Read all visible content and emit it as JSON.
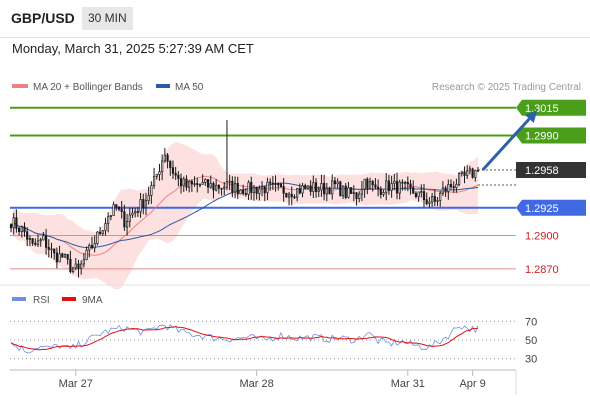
{
  "header": {
    "symbol": "GBP/USD",
    "timeframe": "30 MIN"
  },
  "datetime": "Monday, March 31, 2025 5:27:39 AM CET",
  "copyright": "Research © 2025 Trading Central",
  "colors": {
    "resistance": "#4a9e1a",
    "support": "#4169e1",
    "target_line": "#e28a8a",
    "band_fill": "#fde1e1",
    "ma20": "#f08080",
    "ma50": "#2c5b9e",
    "price_box": "#333333",
    "arrow": "#2d62a8",
    "rsi": "#6f8fe0",
    "rsi_ma": "#dd1111",
    "candle": "#1a1a1a"
  },
  "chart_data": [
    {
      "type": "candlestick",
      "legend": [
        {
          "name": "MA 20 + Bollinger Bands",
          "color": "#f08080"
        },
        {
          "name": "MA 50",
          "color": "#2c5b9e"
        }
      ],
      "ylim": [
        1.286,
        1.3022
      ],
      "x_ticks": [
        "Mar 27",
        "Mar 28",
        "Mar 31",
        "Apr 9"
      ],
      "x_tick_bars": [
        24,
        91,
        147,
        171
      ],
      "current_price": "1.2958",
      "levels": [
        {
          "label": "1.3015",
          "value": 1.3015,
          "kind": "resistance"
        },
        {
          "label": "1.2990",
          "value": 1.299,
          "kind": "resistance"
        },
        {
          "label": "1.2925",
          "value": 1.2925,
          "kind": "support"
        },
        {
          "label": "1.2900",
          "value": 1.29,
          "kind": "target"
        },
        {
          "label": "1.2870",
          "value": 1.287,
          "kind": "target"
        }
      ],
      "forecast_arrow": {
        "from": {
          "bar": 174,
          "price": 1.2959
        },
        "to": {
          "bar": 195,
          "price": 1.3013
        }
      },
      "anchors": [
        [
          0,
          1.2913
        ],
        [
          5,
          1.2903
        ],
        [
          8,
          1.289
        ],
        [
          12,
          1.2896
        ],
        [
          16,
          1.2882
        ],
        [
          19,
          1.2881
        ],
        [
          22,
          1.2872
        ],
        [
          25,
          1.2868
        ],
        [
          28,
          1.2882
        ],
        [
          32,
          1.2899
        ],
        [
          36,
          1.2918
        ],
        [
          39,
          1.2925
        ],
        [
          42,
          1.2913
        ],
        [
          47,
          1.2925
        ],
        [
          50,
          1.2933
        ],
        [
          53,
          1.2948
        ],
        [
          57,
          1.2975
        ],
        [
          59,
          1.2962
        ],
        [
          62,
          1.295
        ],
        [
          65,
          1.2944
        ],
        [
          70,
          1.2946
        ],
        [
          75,
          1.2944
        ],
        [
          80,
          1.2945
        ],
        [
          85,
          1.2942
        ],
        [
          90,
          1.2942
        ],
        [
          95,
          1.2943
        ],
        [
          100,
          1.2941
        ],
        [
          104,
          1.294
        ],
        [
          108,
          1.2942
        ],
        [
          112,
          1.2943
        ],
        [
          116,
          1.2942
        ],
        [
          120,
          1.2945
        ],
        [
          124,
          1.2938
        ],
        [
          128,
          1.2936
        ],
        [
          131,
          1.295
        ],
        [
          135,
          1.2941
        ],
        [
          140,
          1.2945
        ],
        [
          145,
          1.2943
        ],
        [
          150,
          1.2938
        ],
        [
          154,
          1.2932
        ],
        [
          157,
          1.293
        ],
        [
          160,
          1.294
        ],
        [
          163,
          1.2945
        ],
        [
          166,
          1.295
        ],
        [
          170,
          1.2955
        ],
        [
          173,
          1.2958
        ]
      ],
      "spikes": [
        [
          80,
          1.3004
        ]
      ]
    },
    {
      "type": "line",
      "legend": [
        {
          "name": "RSI",
          "color": "#6f8fe0"
        },
        {
          "name": "9MA",
          "color": "#dd1111"
        }
      ],
      "ylim": [
        20,
        80
      ],
      "y_ticks": [
        70,
        50,
        30
      ],
      "rsi_anchors": [
        [
          0,
          46
        ],
        [
          6,
          38
        ],
        [
          10,
          43
        ],
        [
          14,
          41
        ],
        [
          18,
          44
        ],
        [
          22,
          40
        ],
        [
          26,
          46
        ],
        [
          30,
          52
        ],
        [
          34,
          58
        ],
        [
          38,
          61
        ],
        [
          42,
          63
        ],
        [
          46,
          60
        ],
        [
          50,
          58
        ],
        [
          54,
          64
        ],
        [
          57,
          66
        ],
        [
          60,
          62
        ],
        [
          64,
          58
        ],
        [
          70,
          55
        ],
        [
          76,
          52
        ],
        [
          82,
          51
        ],
        [
          88,
          53
        ],
        [
          94,
          50
        ],
        [
          100,
          55
        ],
        [
          106,
          52
        ],
        [
          112,
          53
        ],
        [
          118,
          51
        ],
        [
          122,
          52
        ],
        [
          128,
          50
        ],
        [
          132,
          58
        ],
        [
          136,
          49
        ],
        [
          140,
          46
        ],
        [
          145,
          48
        ],
        [
          150,
          44
        ],
        [
          155,
          42
        ],
        [
          158,
          47
        ],
        [
          162,
          55
        ],
        [
          166,
          66
        ],
        [
          170,
          62
        ],
        [
          173,
          62
        ]
      ]
    }
  ]
}
